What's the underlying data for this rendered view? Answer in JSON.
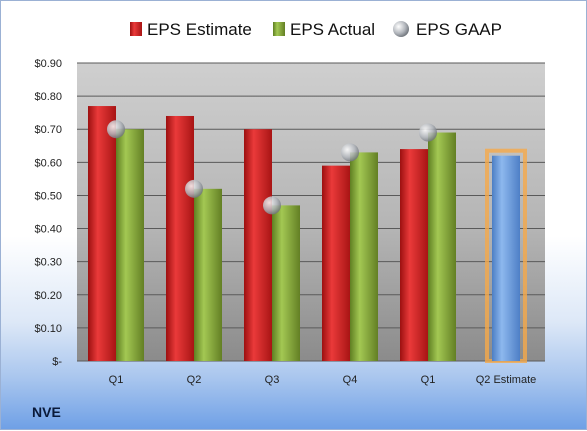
{
  "ticker": "NVE",
  "chart_data": {
    "type": "bar",
    "categories": [
      "Q1",
      "Q2",
      "Q3",
      "Q4",
      "Q1",
      "Q2 Estimate"
    ],
    "series": [
      {
        "name": "EPS Estimate",
        "values": [
          0.77,
          0.74,
          0.7,
          0.59,
          0.64,
          null
        ],
        "color": "#d42a2a"
      },
      {
        "name": "EPS Actual",
        "values": [
          0.7,
          0.52,
          0.47,
          0.63,
          0.69,
          null
        ],
        "color": "#86ac3c"
      },
      {
        "name": "EPS GAAP",
        "values": [
          0.7,
          0.52,
          0.47,
          0.63,
          0.69,
          null
        ],
        "color": "#b8bcc2"
      }
    ],
    "projection": {
      "category": "Q2 Estimate",
      "value": 0.62,
      "color": "#6f9fdf",
      "highlight": "#f5a94a"
    },
    "y_ticks": [
      "$-",
      "$0.10",
      "$0.20",
      "$0.30",
      "$0.40",
      "$0.50",
      "$0.60",
      "$0.70",
      "$0.80",
      "$0.90"
    ],
    "ylim": [
      0,
      0.9
    ],
    "grid": true,
    "legend_position": "top",
    "title": "",
    "xlabel": "",
    "ylabel": ""
  }
}
